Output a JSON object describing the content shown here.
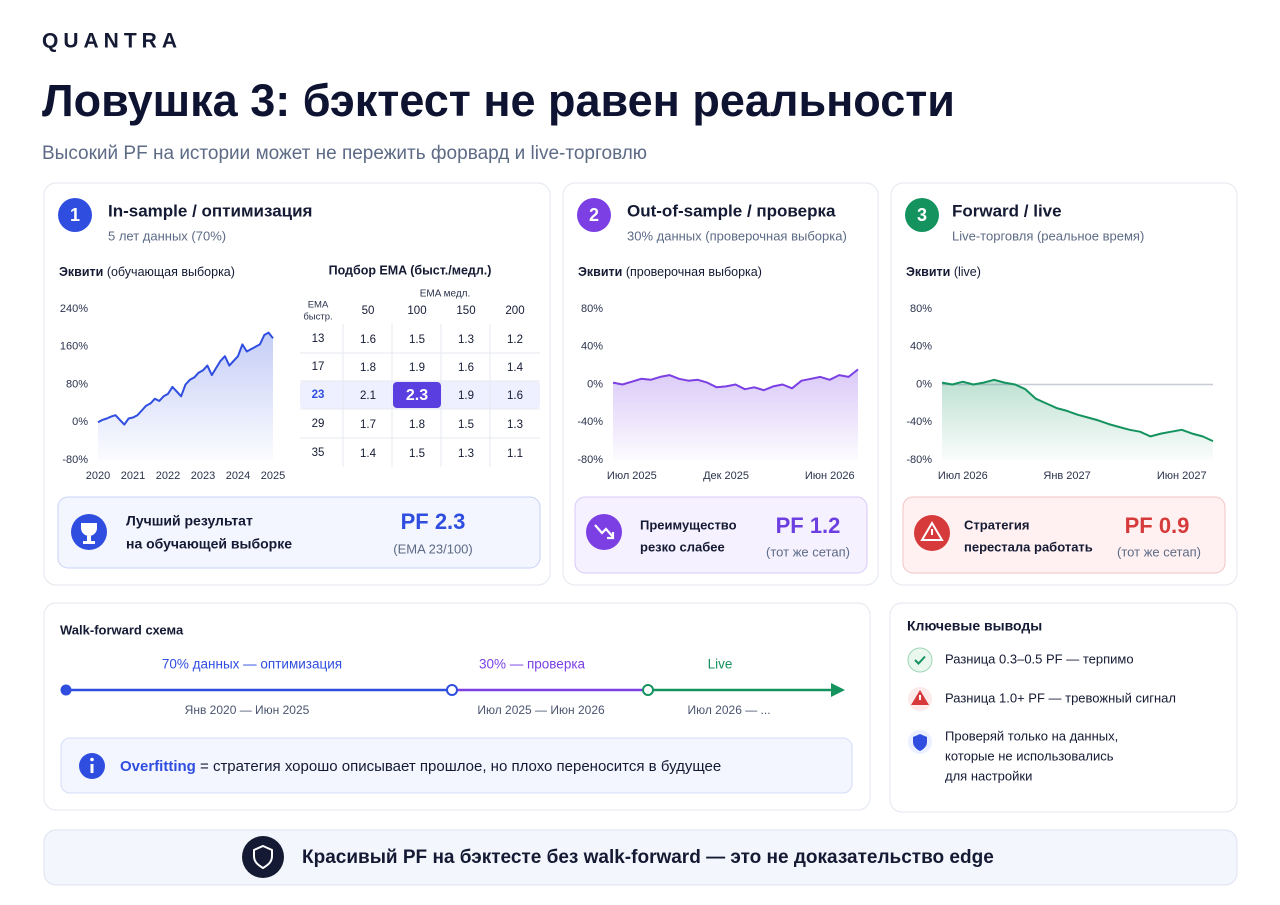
{
  "brand": "QUANTRA",
  "header": {
    "title": "Ловушка 3: бэктест не равен реальности",
    "subtitle": "Высокий PF на истории может не пережить форвард и live-торговлю"
  },
  "panels": [
    {
      "number": "1",
      "color": "#2f4ee0",
      "title": "In-sample / оптимизация",
      "subtitle": "5 лет данных (70%)",
      "chart": {
        "type": "line",
        "label": "Эквити",
        "qualifier": "(обучающая выборка)",
        "color": "#2f4ee0",
        "x": [
          2020,
          2020.125,
          2020.25,
          2020.375,
          2020.5,
          2020.625,
          2020.75,
          2020.875,
          2021,
          2021.125,
          2021.25,
          2021.375,
          2021.5,
          2021.625,
          2021.75,
          2021.875,
          2022,
          2022.125,
          2022.25,
          2022.375,
          2022.5,
          2022.625,
          2022.75,
          2022.875,
          2023,
          2023.125,
          2023.25,
          2023.375,
          2023.5,
          2023.625,
          2023.75,
          2023.875,
          2024,
          2024.125,
          2024.25,
          2024.375,
          2024.5,
          2024.625,
          2024.75,
          2024.875,
          2025
        ],
        "values": [
          0,
          5,
          8,
          12,
          15,
          5,
          -5,
          8,
          10,
          15,
          25,
          35,
          40,
          50,
          45,
          55,
          60,
          75,
          65,
          55,
          80,
          90,
          95,
          105,
          110,
          120,
          100,
          115,
          130,
          140,
          120,
          130,
          140,
          165,
          150,
          155,
          160,
          165,
          185,
          190,
          178
        ],
        "xlim": [
          2020,
          2025
        ],
        "xticks": [
          2020,
          2021,
          2022,
          2023,
          2024,
          2025
        ],
        "ylim": [
          -80,
          240
        ],
        "yticks": [
          {
            "value": 240,
            "label": "240%"
          },
          {
            "value": 160,
            "label": "160%"
          },
          {
            "value": 80,
            "label": "80%"
          },
          {
            "value": 0,
            "label": "0%"
          },
          {
            "value": -80,
            "label": "-80%"
          }
        ]
      },
      "table": {
        "title": "Подбор EMA (быст./медл.)",
        "column_header": "EMA медл.",
        "row_header": [
          "EMA",
          "быстр."
        ],
        "columns": [
          50,
          100,
          150,
          200
        ],
        "rows": [
          {
            "label": 13,
            "values": [
              1.6,
              1.5,
              1.3,
              1.2
            ]
          },
          {
            "label": 17,
            "values": [
              1.8,
              1.9,
              1.6,
              1.4
            ]
          },
          {
            "label": 23,
            "values": [
              2.1,
              2.3,
              1.9,
              1.6
            ]
          },
          {
            "label": 29,
            "values": [
              1.7,
              1.8,
              1.5,
              1.3
            ]
          },
          {
            "label": 35,
            "values": [
              1.4,
              1.5,
              1.3,
              1.1
            ]
          }
        ]
      },
      "result": {
        "lines": [
          "Лучший результат",
          "на обучающей выборке"
        ],
        "pf": "PF 2.3",
        "note": "(EMA 23/100)"
      }
    },
    {
      "number": "2",
      "color": "#7b3fe4",
      "title": "Out-of-sample / проверка",
      "subtitle": "30% данных (проверочная выборка)",
      "chart": {
        "type": "line",
        "label": "Эквити",
        "qualifier": "(проверочная выборка)",
        "color": "#7b3fe4",
        "categories": [
          null,
          null,
          "Июл 2025",
          null,
          null,
          null,
          null,
          null,
          null,
          null,
          null,
          null,
          "Дек 2025",
          null,
          null,
          null,
          null,
          null,
          null,
          null,
          null,
          null,
          null,
          "Июн 2026",
          null,
          null,
          null
        ],
        "values": [
          2,
          0,
          3,
          6,
          5,
          8,
          10,
          6,
          4,
          5,
          2,
          -3,
          -2,
          0,
          -5,
          -3,
          -6,
          -2,
          0,
          -4,
          4,
          6,
          8,
          5,
          10,
          8,
          16
        ],
        "ylim": [
          -80,
          80
        ],
        "yticks": [
          {
            "value": 80,
            "label": "80%"
          },
          {
            "value": 40,
            "label": "40%"
          },
          {
            "value": 0,
            "label": "0%"
          },
          {
            "value": -40,
            "label": "-40%"
          },
          {
            "value": -80,
            "label": "-80%"
          }
        ]
      },
      "result": {
        "lines": [
          "Преимущество",
          "резко слабее"
        ],
        "pf": "PF 1.2",
        "note": "(тот же сетап)"
      }
    },
    {
      "number": "3",
      "color": "#14935f",
      "title": "Forward / live",
      "subtitle": "Live-торговля (реальное время)",
      "chart": {
        "type": "line",
        "label": "Эквити",
        "qualifier": "(live)",
        "color": "#14935f",
        "zero_line": true,
        "categories": [
          null,
          null,
          "Июл 2026",
          null,
          null,
          null,
          null,
          null,
          null,
          null,
          null,
          null,
          "Янв 2027",
          null,
          null,
          null,
          null,
          null,
          null,
          null,
          null,
          null,
          null,
          "Июн 2027",
          null,
          null,
          null
        ],
        "values": [
          2,
          0,
          3,
          0,
          2,
          5,
          2,
          0,
          -5,
          -15,
          -20,
          -25,
          -28,
          -32,
          -35,
          -38,
          -42,
          -45,
          -48,
          -50,
          -55,
          -52,
          -50,
          -48,
          -52,
          -55,
          -60
        ],
        "ylim": [
          -80,
          80
        ],
        "yticks": [
          {
            "value": 80,
            "label": "80%"
          },
          {
            "value": 40,
            "label": "40%"
          },
          {
            "value": 0,
            "label": "0%"
          },
          {
            "value": -40,
            "label": "-40%"
          },
          {
            "value": -80,
            "label": "-80%"
          }
        ]
      },
      "result": {
        "lines": [
          "Стратегия",
          "перестала работать"
        ],
        "pf": "PF 0.9",
        "note": "(тот же сетап)"
      }
    }
  ],
  "walk_forward": {
    "title": "Walk-forward схема",
    "segments": [
      {
        "label": "70% данных — оптимизация",
        "range": "Янв 2020 — Июн 2025",
        "color": "#2f4ee0"
      },
      {
        "label": "30% — проверка",
        "range": "Июл 2025 — Июн 2026",
        "color": "#7b3fe4"
      },
      {
        "label": "Live",
        "range": "Июл 2026 — ...",
        "color": "#14935f"
      }
    ],
    "note": {
      "term": "Overfitting",
      "text": " = стратегия хорошо описывает прошлое, но плохо переносится в будущее"
    }
  },
  "takeaways": {
    "title": "Ключевые выводы",
    "items": [
      {
        "lines": [
          "Разница 0.3–0.5 PF — терпимо"
        ]
      },
      {
        "lines": [
          "Разница 1.0+ PF — тревожный сигнал"
        ]
      },
      {
        "lines": [
          "Проверяй только на данных,",
          "которые не использовались",
          "для настройки"
        ]
      }
    ]
  },
  "footer": "Красивый PF на бэктесте без walk-forward — это не доказательство edge"
}
